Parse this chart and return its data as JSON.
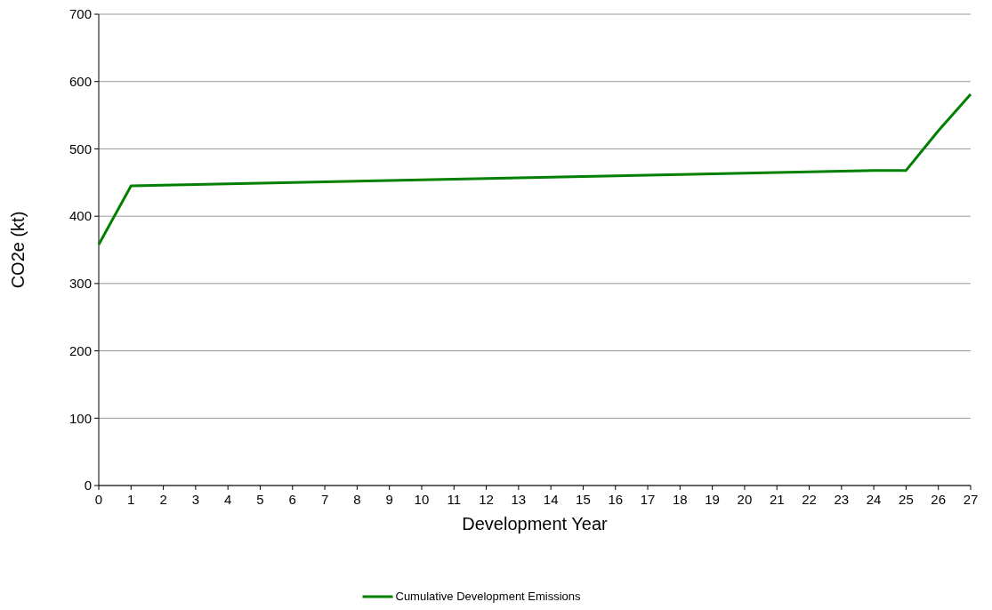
{
  "chart_data": {
    "type": "line",
    "xlabel": "Development Year",
    "ylabel": "CO2e (kt)",
    "x": [
      0,
      1,
      2,
      3,
      4,
      5,
      6,
      7,
      8,
      9,
      10,
      11,
      12,
      13,
      14,
      15,
      16,
      17,
      18,
      19,
      20,
      21,
      22,
      23,
      24,
      25,
      26,
      27
    ],
    "series": [
      {
        "name": "Cumulative Development Emissions",
        "color": "#008000",
        "values": [
          358,
          445,
          446,
          447,
          448,
          449,
          450,
          451,
          452,
          453,
          454,
          455,
          456,
          457,
          458,
          459,
          460,
          461,
          462,
          463,
          464,
          465,
          466,
          467,
          468,
          468,
          527,
          581
        ]
      }
    ],
    "xlim": [
      0,
      27
    ],
    "xticks": [
      0,
      1,
      2,
      3,
      4,
      5,
      6,
      7,
      8,
      9,
      10,
      11,
      12,
      13,
      14,
      15,
      16,
      17,
      18,
      19,
      20,
      21,
      22,
      23,
      24,
      25,
      26,
      27
    ],
    "ylim": [
      0,
      700
    ],
    "yticks": [
      0,
      100,
      200,
      300,
      400,
      500,
      600,
      700
    ],
    "grid": "y",
    "legend": "bottom",
    "marker": "none",
    "line_style": "solid"
  }
}
